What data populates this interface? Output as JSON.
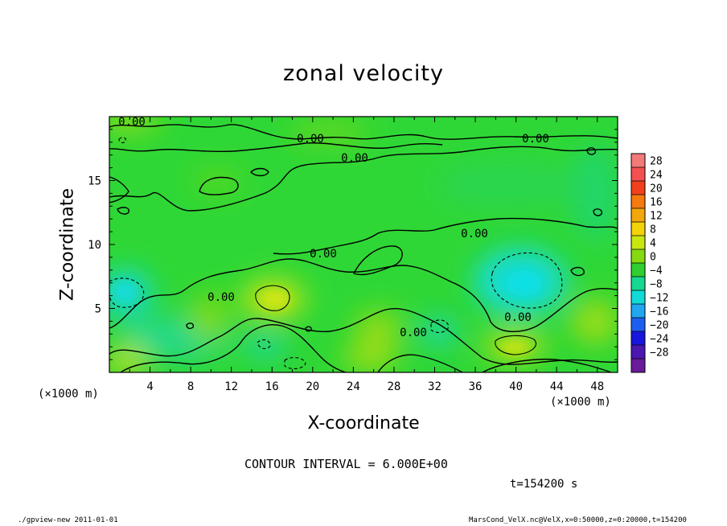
{
  "chart_data": {
    "type": "heatmap",
    "title": "zonal velocity",
    "xlabel": "X-coordinate",
    "ylabel": "Z-coordinate",
    "x_unit": "(×1000 m)",
    "xlim": [
      0,
      50
    ],
    "ylim": [
      0,
      20
    ],
    "x_ticks": [
      4,
      8,
      12,
      16,
      20,
      24,
      28,
      32,
      36,
      40,
      44,
      48
    ],
    "y_ticks": [
      5,
      10,
      15
    ],
    "colorbar": {
      "levels": [
        28,
        24,
        20,
        16,
        12,
        8,
        4,
        0,
        -4,
        -8,
        -12,
        -16,
        -20,
        -24,
        -28
      ],
      "labels": [
        "28",
        "24",
        "20",
        "16",
        "12",
        "8",
        "4",
        "0",
        "−4",
        "−8",
        "−12",
        "−16",
        "−20",
        "−24",
        "−28"
      ],
      "colors": [
        "#f47a7a",
        "#f55050",
        "#f2401c",
        "#f57a10",
        "#f4a70a",
        "#f3d20a",
        "#c8e70e",
        "#86da12",
        "#2fcf2f",
        "#17d890",
        "#12dad7",
        "#21a7ef",
        "#1c5ff0",
        "#1616dc",
        "#4a17b0",
        "#6a1a9a"
      ]
    },
    "contour_labels": [
      "0.00",
      "0.00",
      "0.00",
      "0.00",
      "0.00",
      "0.00",
      "0.00",
      "0.00",
      "0.00"
    ],
    "features": [
      {
        "kind": "minimum",
        "x": 40.5,
        "z": 6.5,
        "value": -7
      },
      {
        "kind": "minimum",
        "x": 1.5,
        "z": 6.3,
        "value": -6
      },
      {
        "kind": "maximum",
        "x": 16.5,
        "z": 6.0,
        "value": 5
      },
      {
        "kind": "maximum",
        "x": 41.0,
        "z": 2.0,
        "value": 4
      },
      {
        "kind": "maximum",
        "x": 1.5,
        "z": 1.0,
        "value": 4
      }
    ]
  },
  "annotations": {
    "x_unit_left": "(×1000 m)",
    "x_unit_right": "(×1000 m)",
    "contour_interval": "CONTOUR INTERVAL = 6.000E+00",
    "time": "t=154200 s",
    "footer_left": "./gpview-new   2011-01-01",
    "footer_right": "MarsCond_VelX.nc@VelX,x=0:50000,z=0:20000,t=154200"
  }
}
